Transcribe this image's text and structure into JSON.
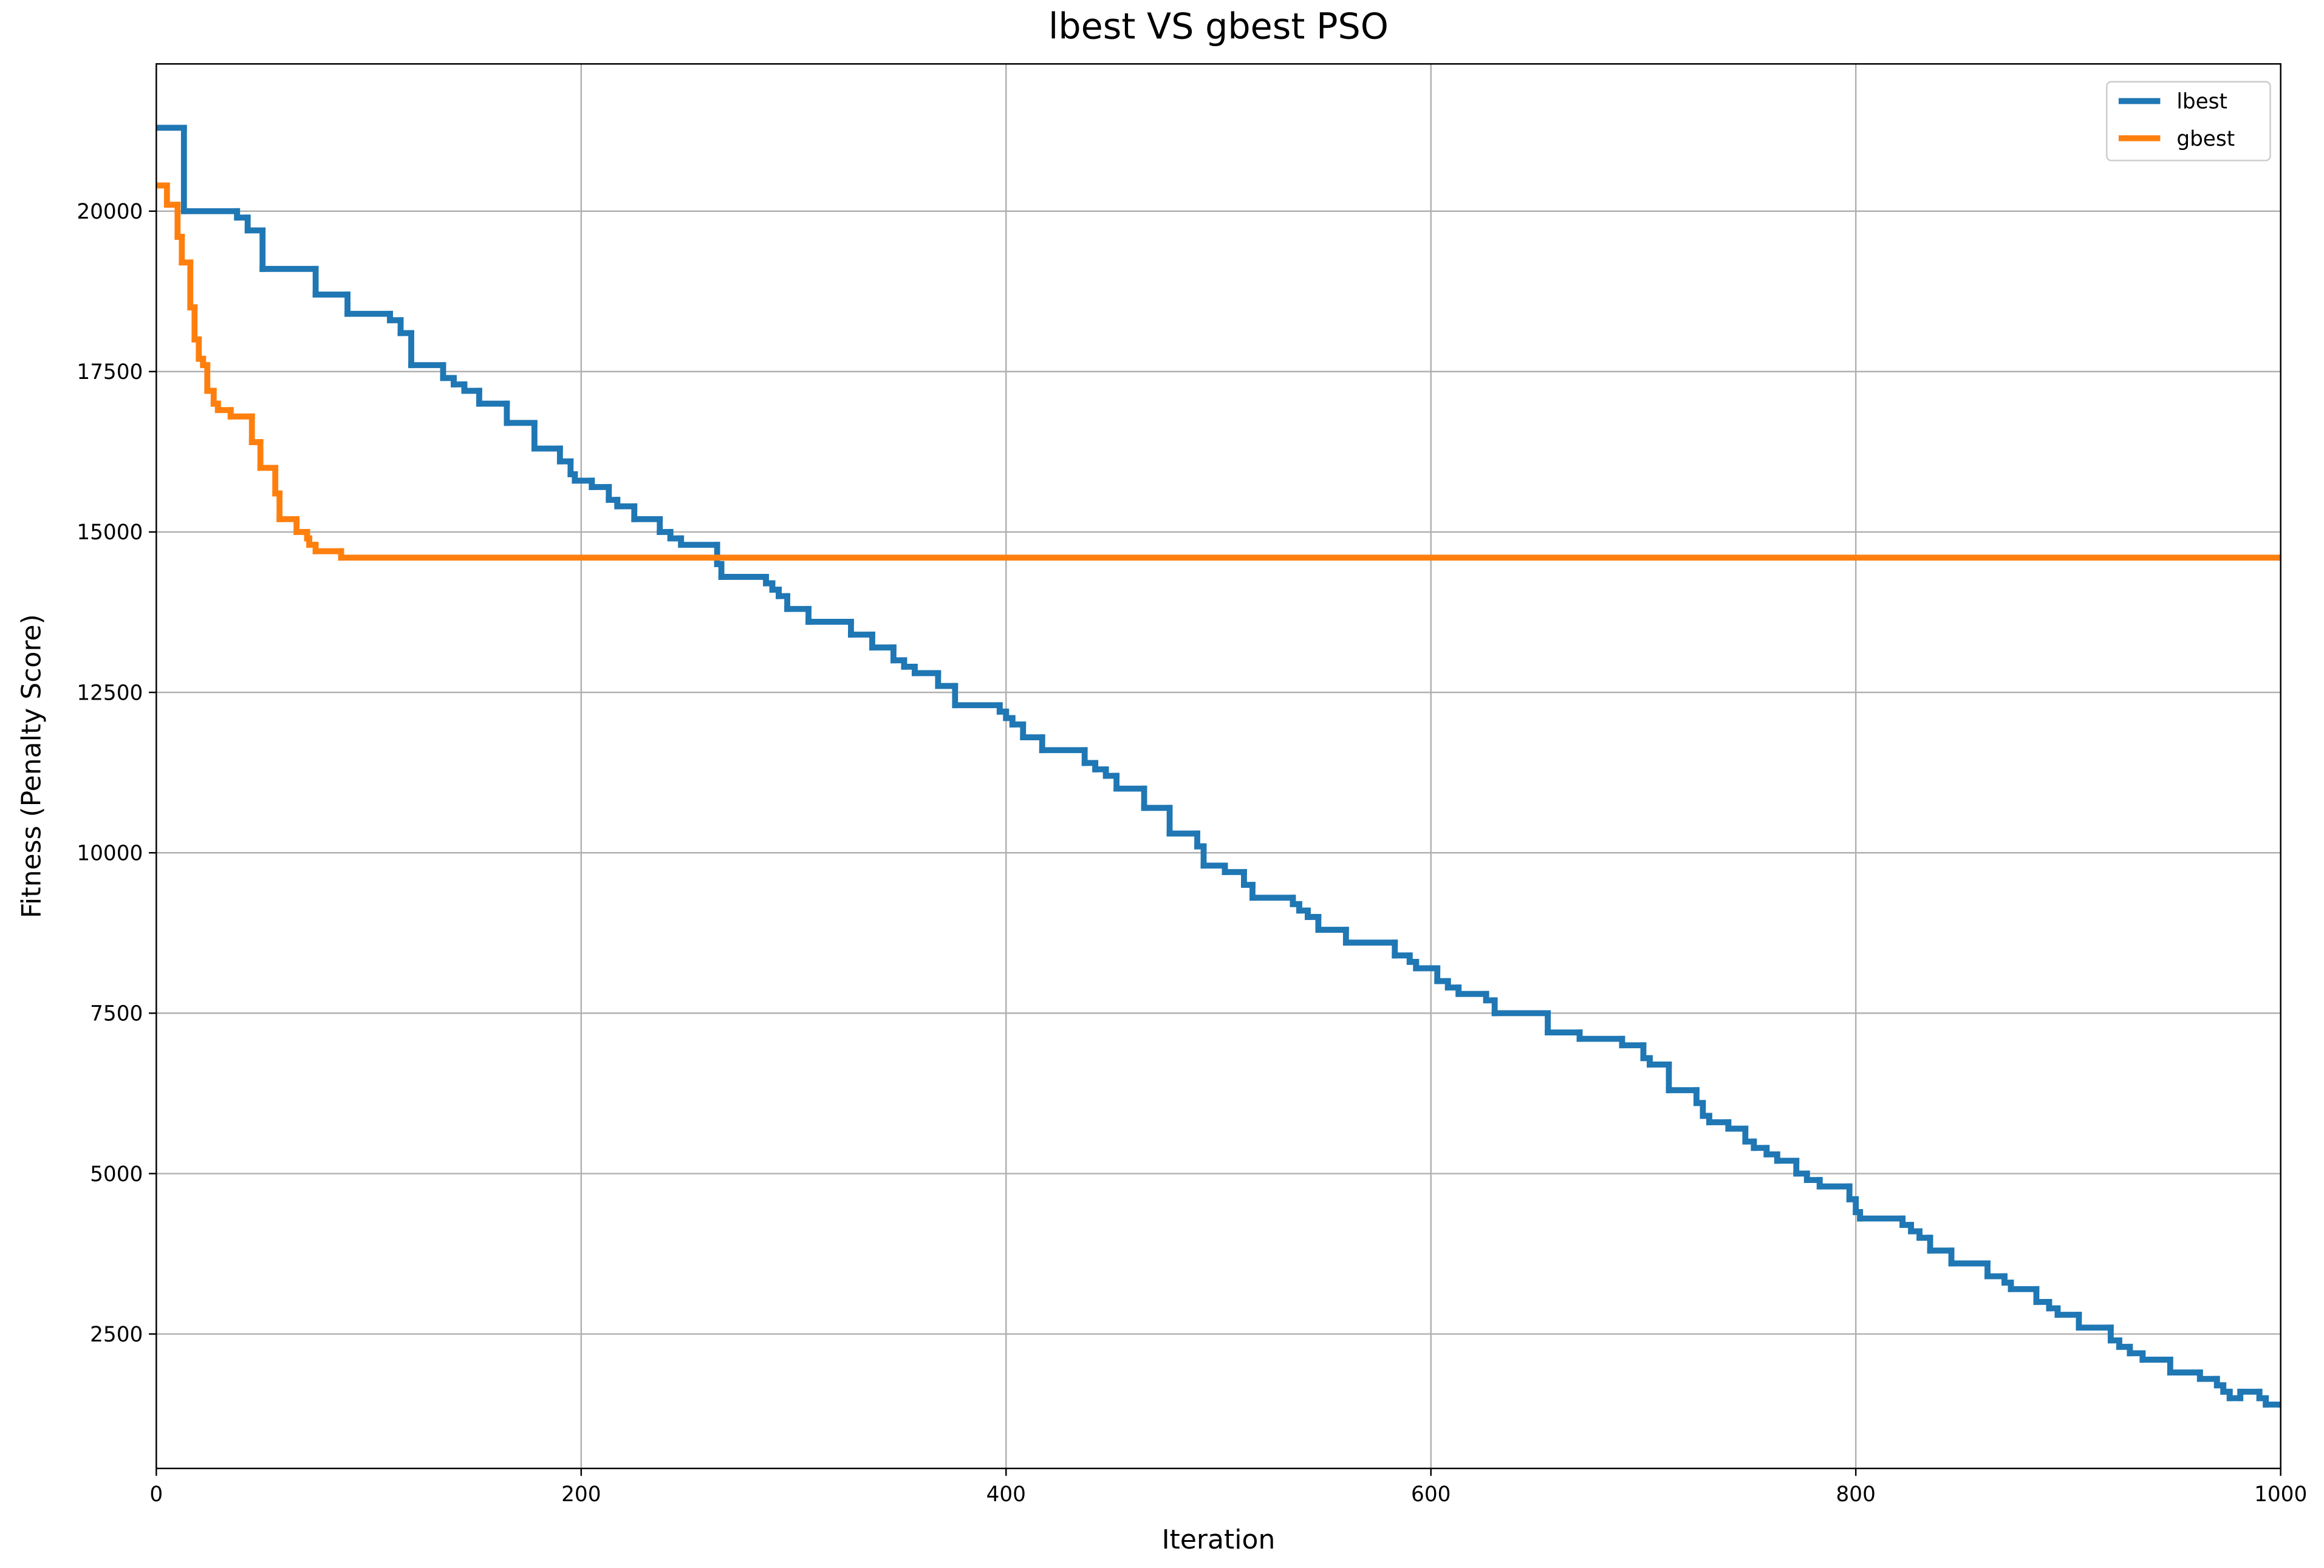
{
  "chart_data": {
    "type": "line",
    "step": "post",
    "title": "lbest VS gbest PSO",
    "x_label": "Iteration",
    "y_label": "Fitness (Penalty Score)",
    "xlim": [
      0,
      1000
    ],
    "xticks": [
      0,
      200,
      400,
      600,
      800,
      1000
    ],
    "ylim": [
      405,
      22295
    ],
    "yticks": [
      2500,
      5000,
      7500,
      10000,
      12500,
      15000,
      17500,
      20000
    ],
    "grid": true,
    "legend": "upper right",
    "series": [
      {
        "name": "lbest",
        "color": "#1f77b4",
        "x": [
          0,
          13,
          38,
          43,
          50,
          75,
          90,
          110,
          115,
          120,
          135,
          140,
          145,
          152,
          165,
          178,
          190,
          195,
          197,
          205,
          213,
          217,
          225,
          237,
          242,
          247,
          264,
          266,
          287,
          290,
          293,
          297,
          307,
          327,
          337,
          347,
          352,
          357,
          368,
          376,
          397,
          400,
          403,
          408,
          417,
          437,
          442,
          447,
          452,
          465,
          477,
          490,
          493,
          503,
          512,
          516,
          535,
          538,
          542,
          547,
          560,
          583,
          590,
          593,
          603,
          608,
          613,
          626,
          630,
          655,
          670,
          690,
          700,
          703,
          712,
          725,
          728,
          731,
          740,
          748,
          752,
          758,
          763,
          772,
          777,
          783,
          797,
          800,
          802,
          822,
          826,
          830,
          835,
          845,
          862,
          870,
          873,
          885,
          891,
          895,
          905,
          920,
          924,
          929,
          935,
          948,
          962,
          970,
          973,
          976,
          981,
          990,
          993,
          1000
        ],
        "values": [
          21300,
          20000,
          19900,
          19700,
          19100,
          18700,
          18400,
          18300,
          18100,
          17600,
          17400,
          17300,
          17200,
          17000,
          16700,
          16300,
          16100,
          15900,
          15800,
          15700,
          15500,
          15400,
          15200,
          15000,
          14900,
          14800,
          14500,
          14300,
          14200,
          14100,
          14000,
          13800,
          13600,
          13400,
          13200,
          13000,
          12900,
          12800,
          12600,
          12300,
          12200,
          12100,
          12000,
          11800,
          11600,
          11400,
          11300,
          11200,
          11000,
          10700,
          10300,
          10100,
          9800,
          9700,
          9500,
          9300,
          9200,
          9100,
          9000,
          8800,
          8600,
          8400,
          8300,
          8200,
          8000,
          7900,
          7800,
          7700,
          7500,
          7200,
          7100,
          7000,
          6800,
          6700,
          6300,
          6100,
          5900,
          5800,
          5700,
          5500,
          5400,
          5300,
          5200,
          5000,
          4900,
          4800,
          4600,
          4400,
          4300,
          4200,
          4100,
          4000,
          3800,
          3600,
          3400,
          3300,
          3200,
          3000,
          2900,
          2800,
          2600,
          2400,
          2300,
          2200,
          2100,
          1900,
          1800,
          1700,
          1600,
          1500,
          1600,
          1500,
          1400,
          1400
        ]
      },
      {
        "name": "gbest",
        "color": "#ff7f0e",
        "x": [
          0,
          5,
          10,
          12,
          16,
          18,
          20,
          22,
          24,
          27,
          29,
          35,
          45,
          49,
          56,
          58,
          66,
          71,
          72,
          75,
          87,
          1000
        ],
        "values": [
          20400,
          20100,
          19600,
          19200,
          18500,
          18000,
          17700,
          17600,
          17200,
          17000,
          16900,
          16800,
          16400,
          16000,
          15600,
          15200,
          15000,
          14900,
          14800,
          14700,
          14600,
          14600
        ]
      }
    ]
  }
}
